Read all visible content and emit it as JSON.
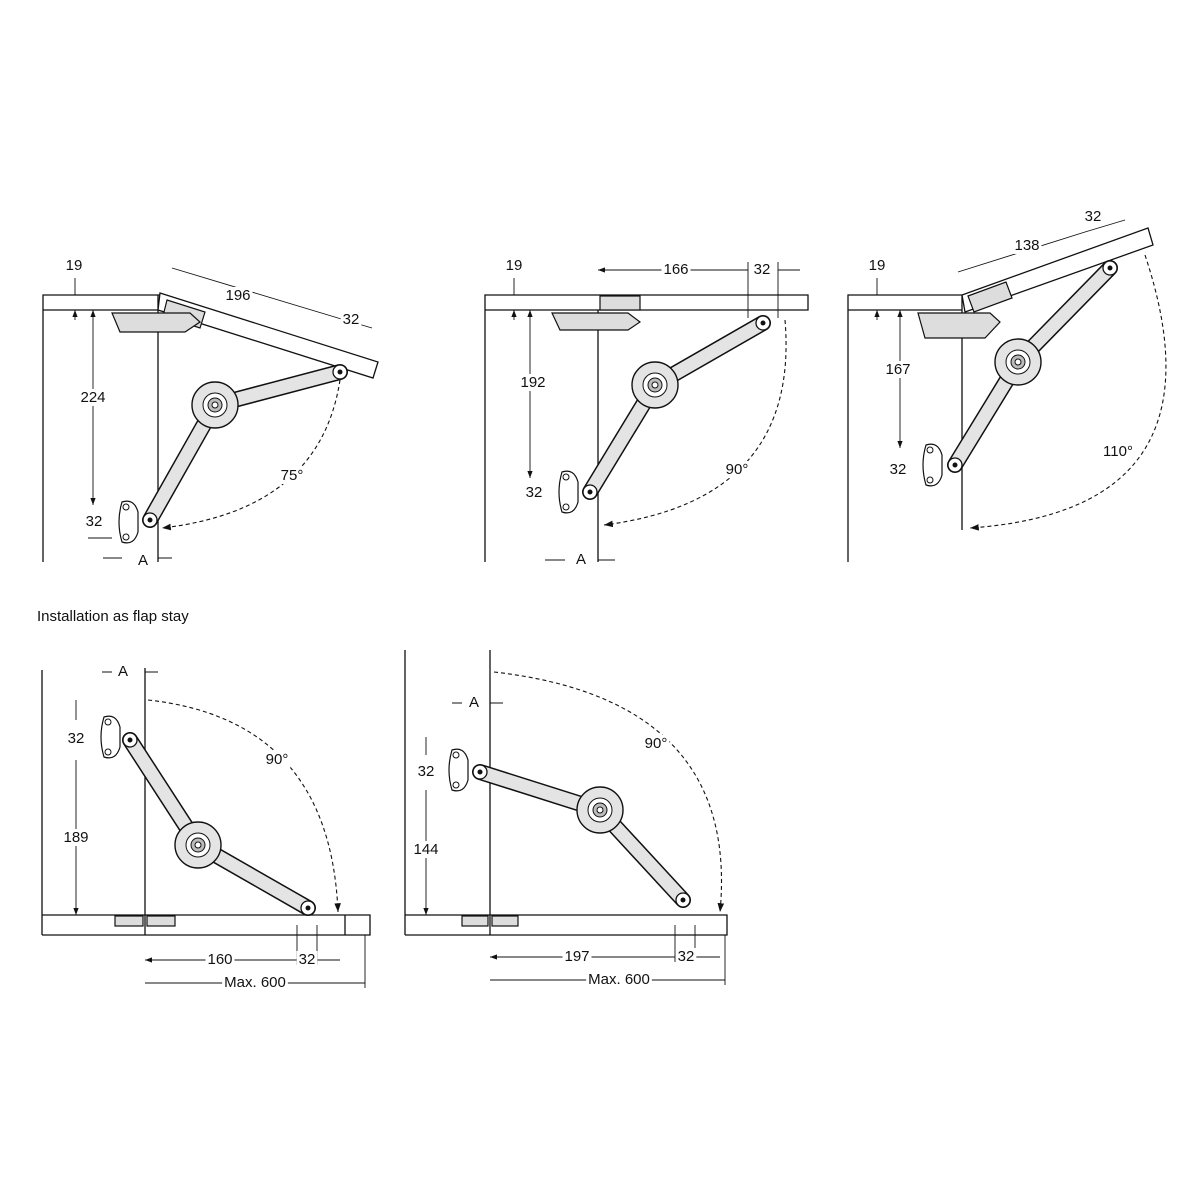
{
  "caption": "Installation as flap stay",
  "diagrams": [
    {
      "thickness": "19",
      "lid_length": "196",
      "lid_offset": "32",
      "height": "224",
      "spacing": "32",
      "setback": "A",
      "angle": "75°"
    },
    {
      "thickness": "19",
      "lid_length": "166",
      "lid_offset": "32",
      "height": "192",
      "spacing": "32",
      "setback": "A",
      "angle": "90°"
    },
    {
      "thickness": "19",
      "lid_length": "138",
      "lid_offset": "32",
      "height": "167",
      "spacing": "32",
      "angle": "110°"
    },
    {
      "setback": "A",
      "spacing": "32",
      "height": "189",
      "angle": "90°",
      "length": "160",
      "offset": "32",
      "max_width": "Max. 600"
    },
    {
      "setback": "A",
      "spacing": "32",
      "height": "144",
      "angle": "90°",
      "length": "197",
      "offset": "32",
      "max_width": "Max. 600"
    }
  ]
}
